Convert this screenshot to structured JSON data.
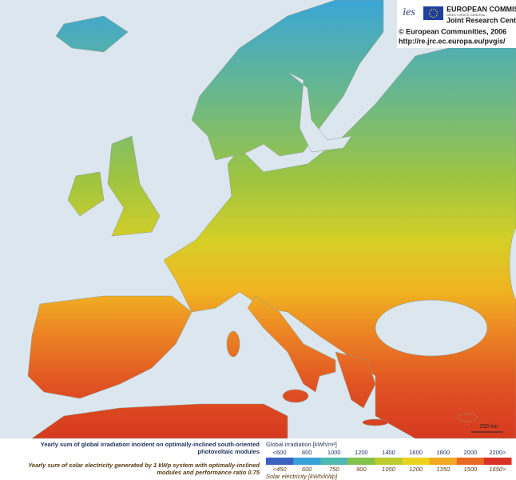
{
  "header": {
    "logo": "ies",
    "organisation": "EUROPEAN COMMISSION",
    "directorate": "DIRECTORATE-GENERAL",
    "centre": "Joint Research Centre",
    "copyright": "© European Communities, 2006",
    "url": "http://re.jrc.ec.europa.eu/pvgis/"
  },
  "map": {
    "scale_label": "200 km"
  },
  "legend": {
    "irradiation_caption": [
      "Yearly sum of global irradiation incident on optimally-inclined south-oriented",
      "photovoltaic modules"
    ],
    "electricity_caption": [
      "Yearly sum of solar electricity generated by 1 kWp system with optimally-inclined",
      "modules and performance ratio 0.75"
    ],
    "irradiation_title": "Global irradiation [kWh/m²]",
    "irradiation_labels": [
      "<600",
      800,
      1000,
      1200,
      1400,
      1600,
      1800,
      2000,
      "2200>"
    ],
    "electricity_labels": [
      "<450",
      600,
      750,
      900,
      1050,
      1200,
      1350,
      1500,
      "1650>"
    ],
    "electricity_title": "Solar electricity [kWh/kWp]",
    "colors": [
      "#3a62c0",
      "#3aa0d8",
      "#4fb8b0",
      "#84c24c",
      "#bccb2e",
      "#ead41e",
      "#f2a822",
      "#e86a22",
      "#d83222"
    ]
  }
}
